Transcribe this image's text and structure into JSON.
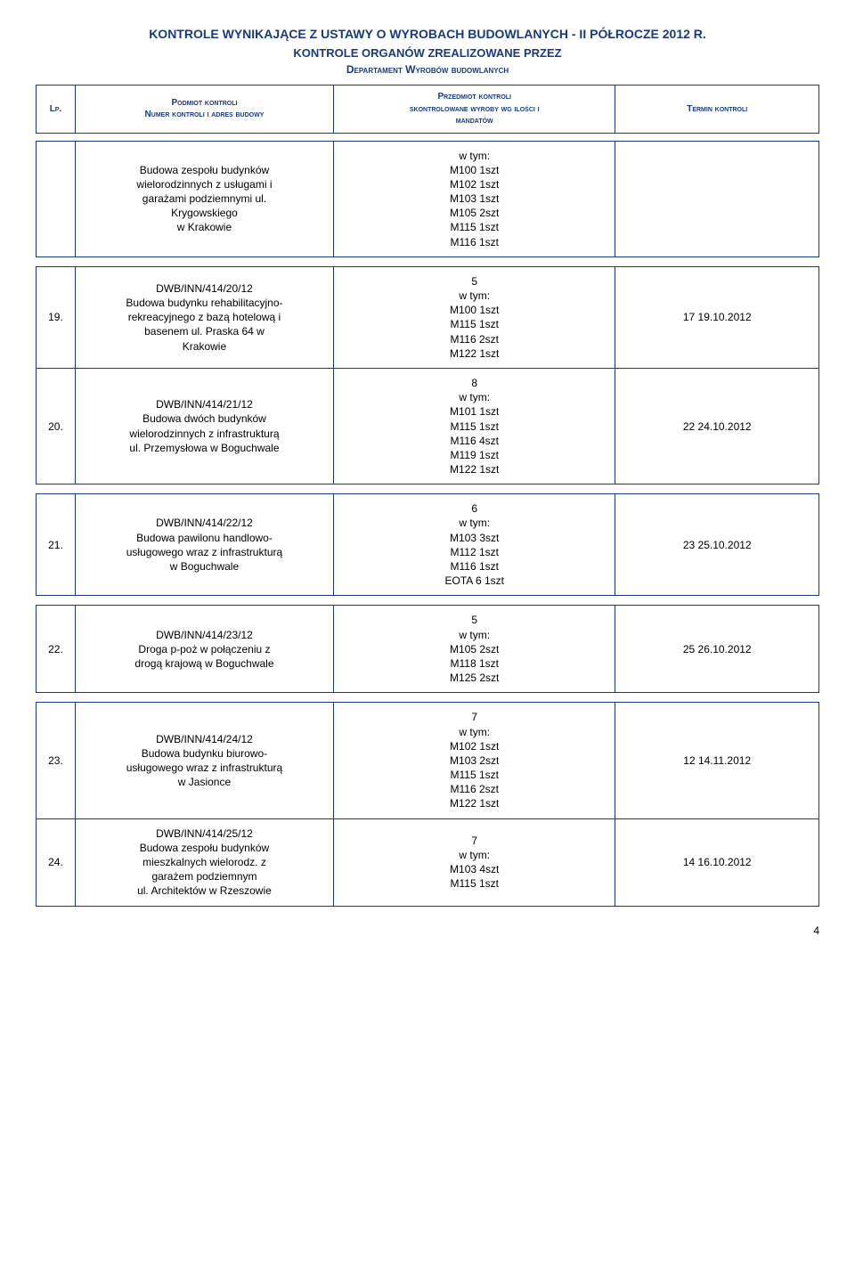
{
  "titles": {
    "main": "KONTROLE WYNIKAJĄCE Z USTAWY O WYROBACH BUDOWLANYCH - II PÓŁROCZE 2012 R.",
    "sub1": "KONTROLE ORGANÓW ZREALIZOWANE PRZEZ",
    "sub2": "Departament Wyrobów budowlanych"
  },
  "headers": {
    "lp": "Lp.",
    "podmiot": "Podmiot kontroli\nNumer kontroli i adres budowy",
    "przedmiot": "Przedmiot kontroli\nskontrolowane wyroby wg ilości i\nmandatów",
    "termin": "Termin kontroli"
  },
  "row_carry": {
    "podmiot": "Budowa zespołu budynków\nwielorodzinnych z usługami i\ngarażami podziemnymi ul.\nKrygowskiego\nw Krakowie",
    "przedmiot": "w tym:\nM100 1szt\nM102 1szt\nM103 1szt\nM105 2szt\nM115 1szt\nM116 1szt"
  },
  "rows": [
    {
      "lp": "19.",
      "podmiot": "DWB/INN/414/20/12\nBudowa budynku rehabilitacyjno-\nrekreacyjnego z bazą hotelową i\nbasenem ul. Praska 64 w\nKrakowie",
      "przedmiot": "5\nw tym:\nM100 1szt\nM115 1szt\nM116 2szt\nM122 1szt",
      "termin": "17 19.10.2012"
    },
    {
      "lp": "20.",
      "podmiot": "DWB/INN/414/21/12\nBudowa dwóch budynków\nwielorodzinnych z infrastrukturą\nul. Przemysłowa w Boguchwale",
      "przedmiot": "8\nw tym:\nM101 1szt\nM115 1szt\nM116 4szt\nM119 1szt\nM122 1szt",
      "termin": "22 24.10.2012"
    },
    {
      "lp": "21.",
      "podmiot": "DWB/INN/414/22/12\nBudowa pawilonu handlowo-\nusługowego wraz z infrastrukturą\nw Boguchwale",
      "przedmiot": "6\nw tym:\nM103 3szt\nM112 1szt\nM116 1szt\nEOTA 6 1szt",
      "termin": "23 25.10.2012"
    },
    {
      "lp": "22.",
      "podmiot": "DWB/INN/414/23/12\nDroga p-poż w połączeniu z\ndrogą krajową w Boguchwale",
      "przedmiot": "5\nw tym:\nM105 2szt\nM118 1szt\nM125 2szt",
      "termin": "25 26.10.2012"
    },
    {
      "lp": "23.",
      "podmiot": "DWB/INN/414/24/12\nBudowa budynku biurowo-\nusługowego wraz z infrastrukturą\nw Jasionce",
      "przedmiot": "7\nw tym:\nM102 1szt\nM103 2szt\nM115 1szt\nM116 2szt\nM122 1szt",
      "termin": "12 14.11.2012"
    },
    {
      "lp": "24.",
      "podmiot": "DWB/INN/414/25/12\nBudowa zespołu budynków\nmieszkalnych wielorodz. z\ngarażem podziemnym\nul. Architektów w Rzeszowie",
      "przedmiot": "7\nw tym:\nM103 4szt\nM115 1szt",
      "termin": "14 16.10.2012"
    }
  ],
  "page_number": "4"
}
